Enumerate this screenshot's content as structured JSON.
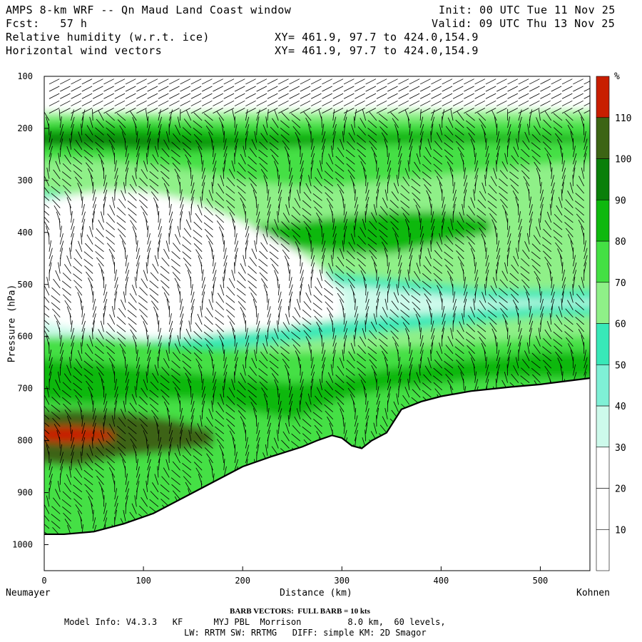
{
  "header": {
    "title": "AMPS 8-km WRF -- Qn Maud Land Coast window",
    "init": "Init: 00 UTC Tue 11 Nov 25",
    "fcst": "Fcst:   57 h",
    "valid": "Valid: 09 UTC Thu 13 Nov 25",
    "field1": "Relative humidity (w.r.t. ice)",
    "xy1": "XY= 461.9, 97.7 to 424.0,154.9",
    "field2": "Horizontal wind vectors",
    "xy2": "XY= 461.9, 97.7 to 424.0,154.9"
  },
  "chart_data": {
    "type": "heatmap",
    "title": "Relative humidity (w.r.t. ice) cross-section with horizontal wind barbs",
    "xlabel": "Distance (km)",
    "ylabel": "Pressure (hPa)",
    "xlim": [
      0,
      550
    ],
    "ylim": [
      1050,
      100
    ],
    "xticks": [
      0,
      100,
      200,
      300,
      400,
      500
    ],
    "yticks": [
      100,
      200,
      300,
      400,
      500,
      600,
      700,
      800,
      900,
      1000
    ],
    "x_left_label": "Neumayer",
    "x_right_label": "Kohnen",
    "colorbar": {
      "unit": "%",
      "levels": [
        10,
        20,
        30,
        40,
        50,
        60,
        70,
        80,
        90,
        100,
        110
      ],
      "colors": [
        "#ffffff",
        "#ffffff",
        "#ffffff",
        "#cdfaeb",
        "#7ff0d6",
        "#38e8b8",
        "#8ff088",
        "#44e044",
        "#0eb80e",
        "#0a7f0a",
        "#3c6414",
        "#c81e00"
      ]
    },
    "terrain": {
      "x": [
        0,
        20,
        50,
        80,
        110,
        140,
        170,
        200,
        230,
        260,
        275,
        290,
        300,
        310,
        320,
        330,
        345,
        360,
        380,
        400,
        430,
        470,
        500,
        550
      ],
      "p": [
        980,
        980,
        975,
        960,
        940,
        910,
        880,
        850,
        830,
        812,
        800,
        790,
        795,
        810,
        815,
        800,
        785,
        740,
        725,
        715,
        705,
        697,
        692,
        680
      ]
    },
    "regions": [
      {
        "label": "Dry pocket",
        "x": [
          0,
          250
        ],
        "p": [
          340,
          600
        ],
        "rh_max": 10
      },
      {
        "label": "Saturated upper band",
        "x": [
          0,
          550
        ],
        "p": [
          180,
          240
        ],
        "rh": 100
      },
      {
        "label": "Moist layer",
        "x": [
          200,
          450
        ],
        "p": [
          370,
          440
        ],
        "rh": 90
      },
      {
        "label": "Boundary-layer max",
        "x": [
          0,
          60
        ],
        "p": [
          770,
          810
        ],
        "rh": 110
      }
    ],
    "wind_barbs": "Horizontal wind vectors plotted on pressure levels"
  },
  "footer": {
    "barb_note": "BARB VECTORS:  FULL BARB = 10 kts",
    "model_info": "Model Info: V4.3.3   KF      MYJ PBL  Morrison         8.0 km,  60 levels,",
    "model_info2": "LW: RRTM SW: RRTMG   DIFF: simple KM: 2D Smagor"
  }
}
